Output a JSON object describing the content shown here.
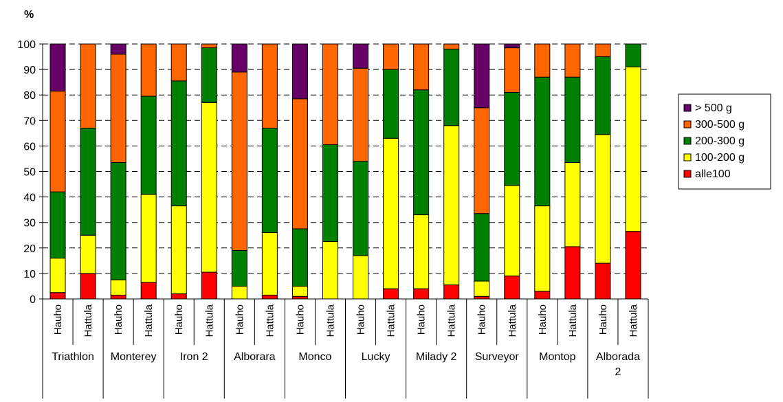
{
  "chart_data": {
    "type": "bar",
    "stacked": true,
    "title": "",
    "ylabel": "%",
    "xlabel": "",
    "ylim": [
      0,
      100
    ],
    "yticks": [
      0,
      10,
      20,
      30,
      40,
      50,
      60,
      70,
      80,
      90,
      100
    ],
    "grid": "horizontal dashed",
    "legend_position": "right",
    "groups": [
      "Triathlon",
      "Monterey",
      "Iron 2",
      "Alborara",
      "Monco",
      "Lucky",
      "Milady 2",
      "Surveyor",
      "Montop",
      "Alborada 2"
    ],
    "subcategories": [
      "Hauho",
      "Hattula"
    ],
    "categories": [
      "Triathlon Hauho",
      "Triathlon Hattula",
      "Monterey Hauho",
      "Monterey Hattula",
      "Iron 2 Hauho",
      "Iron 2 Hattula",
      "Alborara Hauho",
      "Alborara Hattula",
      "Monco Hauho",
      "Monco Hattula",
      "Lucky Hauho",
      "Lucky Hattula",
      "Milady 2 Hauho",
      "Milady 2 Hattula",
      "Surveyor Hauho",
      "Surveyor Hattula",
      "Montop Hauho",
      "Montop Hattula",
      "Alborada 2 Hauho",
      "Alborada 2 Hattula"
    ],
    "series": [
      {
        "name": "alle100",
        "color": "#ff0000",
        "values": [
          2.5,
          10,
          1.5,
          6.5,
          2,
          10.5,
          0,
          1.5,
          1,
          0,
          0,
          4,
          4,
          5.5,
          1,
          9,
          3,
          20.5,
          14,
          26.5
        ]
      },
      {
        "name": "100-200 g",
        "color": "#ffff00",
        "values": [
          13.5,
          15,
          6,
          34.5,
          34.5,
          66.5,
          5,
          24.5,
          4,
          22.5,
          17,
          59,
          29,
          62.5,
          6,
          35.5,
          33.5,
          33,
          50.5,
          64.5
        ]
      },
      {
        "name": "200-300 g",
        "color": "#008000",
        "values": [
          26,
          42,
          46,
          38.5,
          49,
          21.5,
          14,
          41,
          22.5,
          38,
          37,
          27,
          49,
          30,
          26.5,
          36.5,
          50.5,
          33.5,
          30.5,
          9
        ]
      },
      {
        "name": "300-500 g",
        "color": "#ff6600",
        "values": [
          39.5,
          33,
          42.5,
          20.5,
          14.5,
          1.5,
          70,
          33,
          51,
          39.5,
          36.5,
          10,
          18,
          2,
          41.5,
          17.5,
          13,
          13,
          5,
          0
        ]
      },
      {
        "name": "> 500 g",
        "color": "#660066",
        "values": [
          18.5,
          0,
          4,
          0,
          0,
          0,
          11,
          0,
          21.5,
          0,
          9.5,
          0,
          0,
          0,
          25,
          1.5,
          0,
          0,
          0,
          0
        ]
      }
    ],
    "legend_order": [
      "> 500 g",
      "300-500 g",
      "200-300 g",
      "100-200 g",
      "alle100"
    ]
  }
}
